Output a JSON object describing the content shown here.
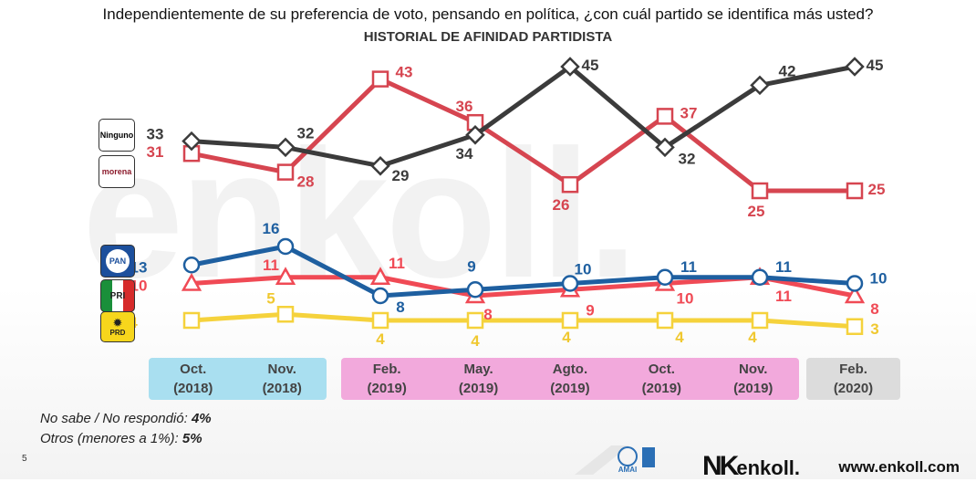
{
  "title": "Independientemente de su preferencia de voto, pensando en política, ¿con cuál partido se identifica más usted?",
  "subtitle": "HISTORIAL DE AFINIDAD PARTIDISTA",
  "watermark": "enkoll.",
  "chart_data": {
    "type": "line",
    "title": "HISTORIAL DE AFINIDAD PARTIDISTA",
    "categories": [
      "Oct. (2018)",
      "Nov. (2018)",
      "Feb. (2019)",
      "May. (2019)",
      "Agto. (2019)",
      "Oct. (2019)",
      "Nov. (2019)",
      "Feb. (2020)"
    ],
    "series": [
      {
        "name": "Ninguno",
        "color": "#3b3b3b",
        "marker": "diamond",
        "values": [
          33,
          32,
          29,
          34,
          45,
          32,
          42,
          45
        ]
      },
      {
        "name": "morena",
        "color": "#d64550",
        "marker": "square",
        "values": [
          31,
          28,
          43,
          36,
          26,
          37,
          25,
          25
        ]
      },
      {
        "name": "PAN",
        "color": "#1e5fa0",
        "marker": "circle",
        "values": [
          13,
          16,
          8,
          9,
          10,
          11,
          11,
          10
        ]
      },
      {
        "name": "PRI",
        "color": "#f04a55",
        "marker": "triangle",
        "values": [
          10,
          11,
          11,
          8,
          9,
          10,
          11,
          8
        ]
      },
      {
        "name": "PRD",
        "color": "#f5d23c",
        "marker": "square",
        "values": [
          4,
          5,
          4,
          4,
          4,
          4,
          4,
          3
        ]
      }
    ]
  },
  "periods": [
    {
      "labels": [
        "Oct.\n(2018)",
        "Nov.\n(2018)"
      ],
      "color": "#a9dff0"
    },
    {
      "labels": [
        "Feb.\n(2019)",
        "May.\n(2019)",
        "Agto.\n(2019)",
        "Oct.\n(2019)",
        "Nov.\n(2019)"
      ],
      "color": "#f2a9dc"
    },
    {
      "labels": [
        "Feb.\n(2020)"
      ],
      "color": "#dcdcdc"
    }
  ],
  "legend": {
    "ninguno": "Ninguno",
    "morena": "morena",
    "pan": "PAN",
    "pri": "PRI",
    "prd": "PRD"
  },
  "notes": {
    "no_sabe_label": "No sabe / No respondió:",
    "no_sabe_value": "4%",
    "otros_label": "Otros (menores a 1%):",
    "otros_value": "5%"
  },
  "footer": {
    "page": "5",
    "brand": "enkoll.",
    "website": "www.enkoll.com",
    "amai": "AMAI"
  }
}
